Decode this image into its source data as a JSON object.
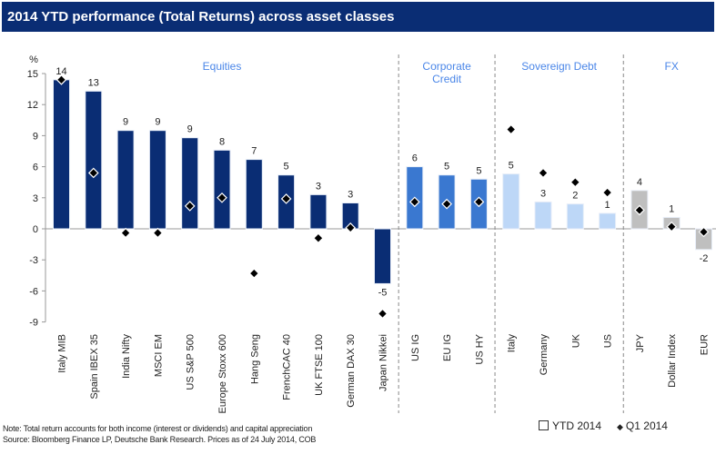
{
  "chart_data": {
    "type": "bar",
    "title": "2014 YTD performance (Total Returns) across asset classes",
    "ylabel": "%",
    "ylim": [
      -9,
      15
    ],
    "yticks": [
      -9,
      -6,
      -3,
      0,
      3,
      6,
      9,
      12,
      15
    ],
    "grid": false,
    "legend_placement": "bottom-right",
    "groups": [
      {
        "name": "Equities",
        "color": "#0a2d74",
        "categories": [
          "Italy MIB",
          "Spain IBEX 35",
          "India Nifty",
          "MSCI EM",
          "US S&P 500",
          "Europe Stoxx 600",
          "Hang Seng",
          "FrenchCAC 40",
          "UK FTSE 100",
          "German DAX 30",
          "Japan Nikkei"
        ]
      },
      {
        "name": "Corporate Credit",
        "color": "#3a78d0",
        "categories": [
          "US IG",
          "EU IG",
          "US HY"
        ]
      },
      {
        "name": "Sovereign Debt",
        "color": "#bdd7f7",
        "categories": [
          "Italy",
          "Germany",
          "UK",
          "US"
        ]
      },
      {
        "name": "FX",
        "color": "#bfbfbf",
        "categories": [
          "JPY",
          "Dollar Index",
          "EUR"
        ]
      }
    ],
    "series": [
      {
        "name": "YTD 2014",
        "type": "bar",
        "values": [
          14.4,
          13.3,
          9.5,
          9.5,
          8.8,
          7.6,
          6.7,
          5.2,
          3.3,
          2.5,
          -5.3,
          6.0,
          5.2,
          4.8,
          5.3,
          2.6,
          2.4,
          1.5,
          3.7,
          1.1,
          -2.0
        ],
        "labels": [
          "14",
          "13",
          "9",
          "9",
          "9",
          "8",
          "7",
          "5",
          "3",
          "3",
          "-5",
          "6",
          "5",
          "5",
          "5",
          "3",
          "2",
          "1",
          "4",
          "1",
          "-2"
        ]
      },
      {
        "name": "Q1 2014",
        "type": "marker",
        "values": [
          14.4,
          5.4,
          -0.4,
          -0.4,
          2.2,
          3.0,
          -4.3,
          2.9,
          -0.9,
          0.1,
          -8.2,
          2.6,
          2.4,
          2.6,
          9.6,
          5.4,
          4.5,
          3.5,
          1.8,
          0.2,
          -0.3
        ]
      }
    ]
  },
  "notes": {
    "note": "Note: Total return accounts for both income (interest or dividends) and capital appreciation",
    "source": "Source: Bloomberg Finance LP, Deutsche Bank Research. Prices as of 24 July 2014, COB"
  },
  "colors": {
    "title_bar": "#0a2d74",
    "group_label": "#4a86e8"
  }
}
